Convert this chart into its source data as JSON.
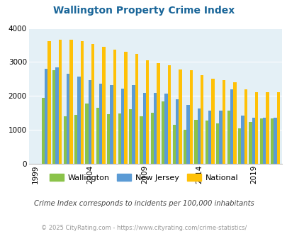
{
  "title": "Wallington Property Crime Index",
  "years": [
    1999,
    2000,
    2001,
    2002,
    2003,
    2004,
    2005,
    2006,
    2007,
    2008,
    2009,
    2010,
    2011,
    2012,
    2013,
    2014,
    2015,
    2016,
    2017,
    2018,
    2019,
    2020,
    2021
  ],
  "wallington": [
    0,
    1950,
    2750,
    1390,
    1450,
    1770,
    1650,
    1470,
    1480,
    1600,
    1390,
    1510,
    1840,
    1140,
    1010,
    1300,
    1270,
    1190,
    1560,
    1040,
    1240,
    1330,
    1330
  ],
  "new_jersey": [
    0,
    2790,
    2840,
    2650,
    2570,
    2460,
    2370,
    2310,
    2220,
    2310,
    2080,
    2080,
    2060,
    1910,
    1730,
    1640,
    1560,
    1560,
    2190,
    1430,
    1350,
    1350,
    1350
  ],
  "national": [
    0,
    3620,
    3660,
    3650,
    3610,
    3530,
    3440,
    3360,
    3300,
    3230,
    3050,
    2960,
    2910,
    2780,
    2750,
    2620,
    2510,
    2470,
    2400,
    2200,
    2110,
    2110,
    2110
  ],
  "wallington_color": "#8bc34a",
  "nj_color": "#5b9bd5",
  "national_color": "#ffc107",
  "bg_color": "#e4f0f6",
  "ylim": [
    0,
    4000
  ],
  "yticks": [
    0,
    1000,
    2000,
    3000,
    4000
  ],
  "xtick_years": [
    1999,
    2004,
    2009,
    2014,
    2019
  ],
  "subtitle": "Crime Index corresponds to incidents per 100,000 inhabitants",
  "footer": "© 2025 CityRating.com - https://www.cityrating.com/crime-statistics/",
  "title_color": "#1a6699",
  "subtitle_color": "#444444",
  "footer_color": "#999999"
}
